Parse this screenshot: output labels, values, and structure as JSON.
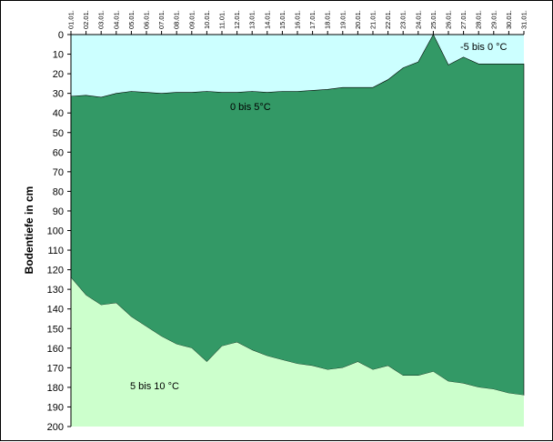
{
  "chart_data": {
    "type": "area",
    "title": "",
    "ylabel": "Bodentiefe in cm",
    "xlabel": "",
    "ylim": [
      0,
      200
    ],
    "y_ticks": [
      0,
      10,
      20,
      30,
      40,
      50,
      60,
      70,
      80,
      90,
      100,
      110,
      120,
      130,
      140,
      150,
      160,
      170,
      180,
      190,
      200
    ],
    "y_reversed": true,
    "categories": [
      "01.01.",
      "02.01.",
      "03.01.",
      "04.01.",
      "05.01.",
      "06.01.",
      "07.01.",
      "08.01.",
      "09.01.",
      "10.01.",
      "11.01.",
      "12.01.",
      "13.01.",
      "14.01.",
      "15.01.",
      "16.01.",
      "17.01.",
      "18.01.",
      "19.01.",
      "20.01.",
      "21.01.",
      "22.01.",
      "23.01.",
      "24.01.",
      "25.01.",
      "26.01.",
      "27.01.",
      "28.01.",
      "29.01.",
      "30.01.",
      "31.01."
    ],
    "series": [
      {
        "name": "-5 bis 0 °C",
        "color": "#ccffff",
        "values": [
          31.5,
          31,
          32,
          30,
          29,
          29.5,
          30,
          29.5,
          29.5,
          29,
          29.5,
          29.5,
          29,
          29.5,
          29,
          29,
          28.5,
          28,
          27,
          27,
          27,
          23,
          17,
          14,
          0,
          15.5,
          11.5,
          15,
          15,
          15,
          15
        ]
      },
      {
        "name": "0 bis 5°C",
        "color": "#339966",
        "values": [
          124,
          133,
          138,
          137,
          144,
          149,
          154,
          158,
          160,
          167,
          159,
          157,
          161,
          164,
          166,
          168,
          169,
          171,
          170,
          167,
          171,
          169,
          174,
          174,
          172,
          177,
          178,
          180,
          181,
          183,
          184
        ]
      },
      {
        "name": "5 bis 10 °C",
        "color": "#ccffcc"
      }
    ],
    "grid": false,
    "legend": "none"
  }
}
